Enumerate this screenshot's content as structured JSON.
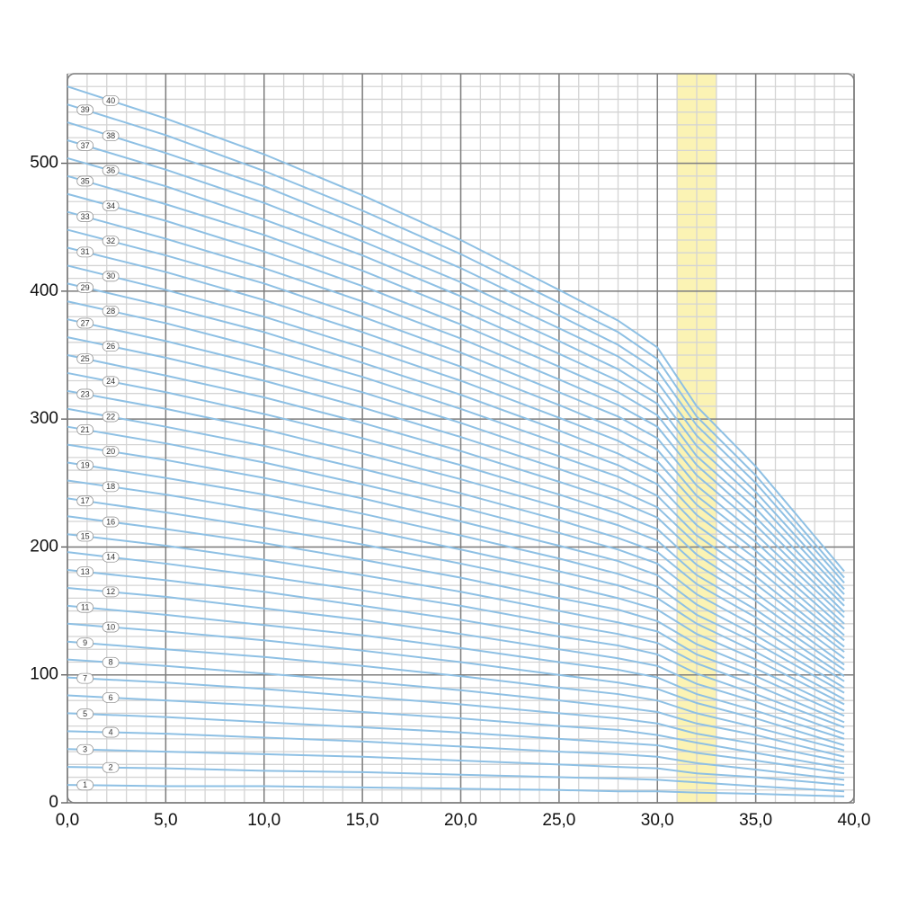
{
  "chart_data": {
    "type": "line",
    "x": [
      0,
      5,
      10,
      15,
      20,
      25,
      28,
      30,
      32,
      35,
      39.5
    ],
    "xlim": [
      0,
      40
    ],
    "ylim": [
      0,
      570
    ],
    "xticks": [
      {
        "value": 0,
        "label": "0,0"
      },
      {
        "value": 5,
        "label": "5,0"
      },
      {
        "value": 10,
        "label": "10,0"
      },
      {
        "value": 15,
        "label": "15,0"
      },
      {
        "value": 20,
        "label": "20,0"
      },
      {
        "value": 25,
        "label": "25,0"
      },
      {
        "value": 30,
        "label": "30,0"
      },
      {
        "value": 35,
        "label": "35,0"
      },
      {
        "value": 40,
        "label": "40,0"
      }
    ],
    "yticks": [
      0,
      100,
      200,
      300,
      400,
      500
    ],
    "grid": true,
    "minor_grid": {
      "x": 1,
      "y": 10
    },
    "highlight_x": [
      31,
      33
    ],
    "highlight_color": "#fbf3b4",
    "color": "#8ec0e4",
    "series": [
      {
        "name": "1",
        "values": [
          14,
          13,
          13,
          12,
          11,
          10,
          9,
          9,
          8,
          7,
          5
        ]
      },
      {
        "name": "2",
        "values": [
          28,
          27,
          25,
          24,
          22,
          20,
          19,
          18,
          16,
          13,
          9
        ]
      },
      {
        "name": "3",
        "values": [
          42,
          40,
          38,
          36,
          33,
          30,
          28,
          27,
          23,
          20,
          14
        ]
      },
      {
        "name": "4",
        "values": [
          56,
          54,
          51,
          48,
          44,
          40,
          38,
          36,
          31,
          26,
          18
        ]
      },
      {
        "name": "5",
        "values": [
          70,
          67,
          63,
          59,
          55,
          50,
          47,
          45,
          39,
          33,
          23
        ]
      },
      {
        "name": "6",
        "values": [
          84,
          80,
          76,
          71,
          66,
          60,
          57,
          53,
          47,
          39,
          27
        ]
      },
      {
        "name": "7",
        "values": [
          98,
          94,
          89,
          83,
          77,
          70,
          66,
          62,
          54,
          46,
          32
        ]
      },
      {
        "name": "8",
        "values": [
          112,
          107,
          101,
          95,
          88,
          80,
          75,
          71,
          62,
          53,
          36
        ]
      },
      {
        "name": "9",
        "values": [
          126,
          120,
          114,
          107,
          99,
          90,
          85,
          80,
          70,
          59,
          41
        ]
      },
      {
        "name": "10",
        "values": [
          140,
          134,
          127,
          119,
          110,
          100,
          94,
          89,
          78,
          66,
          45
        ]
      },
      {
        "name": "11",
        "values": [
          154,
          147,
          139,
          131,
          121,
          110,
          104,
          98,
          85,
          72,
          50
        ]
      },
      {
        "name": "12",
        "values": [
          168,
          161,
          152,
          143,
          132,
          120,
          113,
          107,
          93,
          79,
          54
        ]
      },
      {
        "name": "13",
        "values": [
          182,
          174,
          165,
          154,
          143,
          130,
          123,
          116,
          101,
          85,
          59
        ]
      },
      {
        "name": "14",
        "values": [
          196,
          187,
          177,
          166,
          154,
          140,
          132,
          125,
          109,
          92,
          63
        ]
      },
      {
        "name": "15",
        "values": [
          210,
          201,
          190,
          178,
          165,
          150,
          141,
          134,
          116,
          99,
          68
        ]
      },
      {
        "name": "16",
        "values": [
          224,
          214,
          203,
          190,
          176,
          160,
          151,
          142,
          124,
          105,
          72
        ]
      },
      {
        "name": "17",
        "values": [
          238,
          227,
          215,
          202,
          187,
          171,
          160,
          151,
          132,
          112,
          77
        ]
      },
      {
        "name": "18",
        "values": [
          252,
          241,
          228,
          214,
          198,
          181,
          170,
          160,
          140,
          118,
          81
        ]
      },
      {
        "name": "19",
        "values": [
          266,
          254,
          241,
          226,
          209,
          191,
          179,
          169,
          147,
          125,
          86
        ]
      },
      {
        "name": "20",
        "values": [
          280,
          268,
          254,
          238,
          220,
          201,
          189,
          178,
          155,
          131,
          90
        ]
      },
      {
        "name": "21",
        "values": [
          294,
          281,
          266,
          249,
          231,
          211,
          198,
          187,
          163,
          138,
          95
        ]
      },
      {
        "name": "22",
        "values": [
          308,
          294,
          279,
          261,
          242,
          221,
          207,
          196,
          171,
          145,
          99
        ]
      },
      {
        "name": "23",
        "values": [
          322,
          308,
          292,
          273,
          253,
          231,
          217,
          205,
          178,
          151,
          104
        ]
      },
      {
        "name": "24",
        "values": [
          336,
          321,
          304,
          285,
          264,
          241,
          226,
          214,
          186,
          158,
          108
        ]
      },
      {
        "name": "25",
        "values": [
          350,
          334,
          317,
          297,
          275,
          251,
          236,
          223,
          194,
          164,
          113
        ]
      },
      {
        "name": "26",
        "values": [
          364,
          348,
          330,
          309,
          286,
          261,
          245,
          231,
          202,
          171,
          118
        ]
      },
      {
        "name": "27",
        "values": [
          378,
          361,
          342,
          321,
          297,
          271,
          255,
          240,
          209,
          177,
          122
        ]
      },
      {
        "name": "28",
        "values": [
          392,
          375,
          355,
          333,
          308,
          281,
          264,
          249,
          217,
          184,
          127
        ]
      },
      {
        "name": "29",
        "values": [
          406,
          388,
          368,
          344,
          319,
          291,
          273,
          258,
          225,
          191,
          131
        ]
      },
      {
        "name": "30",
        "values": [
          420,
          401,
          380,
          356,
          330,
          301,
          283,
          267,
          233,
          197,
          136
        ]
      },
      {
        "name": "31",
        "values": [
          434,
          415,
          393,
          368,
          341,
          311,
          292,
          276,
          240,
          204,
          140
        ]
      },
      {
        "name": "32",
        "values": [
          448,
          428,
          406,
          380,
          352,
          321,
          302,
          285,
          248,
          210,
          145
        ]
      },
      {
        "name": "33",
        "values": [
          462,
          441,
          418,
          392,
          363,
          331,
          311,
          294,
          256,
          217,
          149
        ]
      },
      {
        "name": "34",
        "values": [
          476,
          455,
          431,
          404,
          374,
          341,
          321,
          303,
          264,
          223,
          154
        ]
      },
      {
        "name": "35",
        "values": [
          490,
          468,
          444,
          416,
          385,
          351,
          330,
          312,
          271,
          230,
          158
        ]
      },
      {
        "name": "36",
        "values": [
          504,
          482,
          456,
          428,
          396,
          361,
          339,
          320,
          279,
          237,
          163
        ]
      },
      {
        "name": "37",
        "values": [
          518,
          495,
          469,
          439,
          407,
          371,
          349,
          329,
          287,
          243,
          167
        ]
      },
      {
        "name": "38",
        "values": [
          532,
          508,
          482,
          451,
          418,
          381,
          358,
          338,
          295,
          250,
          172
        ]
      },
      {
        "name": "39",
        "values": [
          546,
          522,
          494,
          463,
          429,
          391,
          368,
          347,
          302,
          256,
          176
        ]
      },
      {
        "name": "40",
        "values": [
          560,
          535,
          507,
          475,
          440,
          401,
          377,
          356,
          310,
          263,
          181
        ]
      }
    ]
  }
}
